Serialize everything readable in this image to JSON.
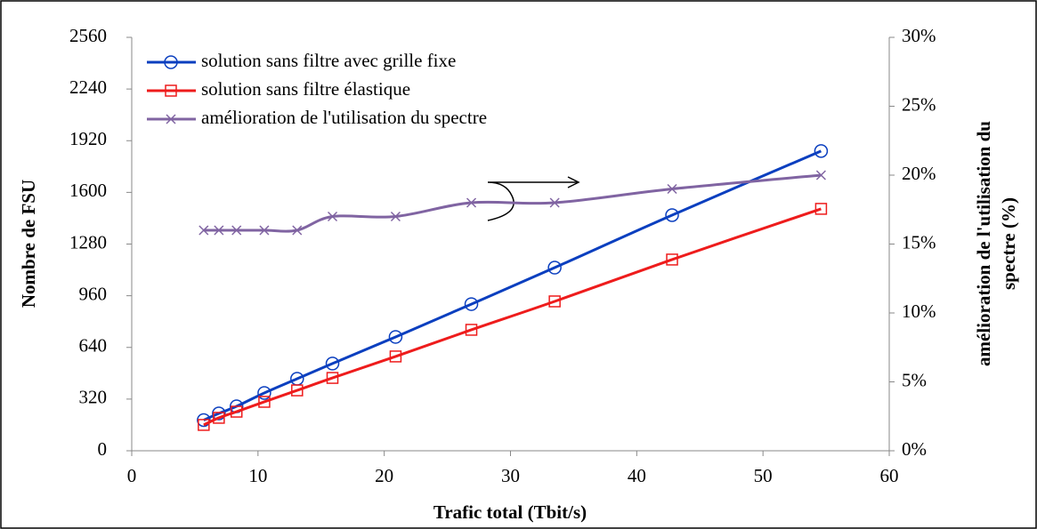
{
  "chart_data": {
    "type": "line",
    "xlabel": "Trafic total (Tbit/s)",
    "ylabel": "Nombre de FSU",
    "y2label": [
      "amélioration de l'utilisation du",
      "spectre (%)"
    ],
    "x": [
      5.7,
      6.9,
      8.3,
      10.5,
      13.1,
      15.9,
      20.9,
      26.9,
      33.5,
      42.8,
      54.6
    ],
    "series": [
      {
        "name": "solution sans filtre avec grille fixe",
        "color": "#0b3fbf",
        "marker": "circle",
        "values": [
          190,
          231,
          275,
          358,
          446,
          540,
          705,
          908,
          1134,
          1459,
          1856
        ]
      },
      {
        "name": "solution sans filtre élastique",
        "color": "#ee1c1c",
        "marker": "square",
        "values": [
          160,
          204,
          242,
          303,
          374,
          451,
          584,
          749,
          925,
          1184,
          1498
        ]
      },
      {
        "name": "amélioration de l'utilisation du spectre",
        "color": "#8064a2",
        "marker": "x",
        "axis": "y2",
        "values": [
          16,
          16,
          16,
          16,
          16,
          17,
          17,
          18,
          18,
          19,
          20
        ]
      }
    ],
    "xlim": [
      0,
      60
    ],
    "xticks": [
      0,
      10,
      20,
      30,
      40,
      50,
      60
    ],
    "ylim": [
      0,
      2560
    ],
    "yticks": [
      0,
      320,
      640,
      960,
      1280,
      1600,
      1920,
      2240,
      2560
    ],
    "y2lim": [
      0,
      30
    ],
    "y2ticks": [
      {
        "value": 0,
        "label": "0%"
      },
      {
        "value": 5,
        "label": "5%"
      },
      {
        "value": 10,
        "label": "10%"
      },
      {
        "value": 15,
        "label": "15%"
      },
      {
        "value": 20,
        "label": "20%"
      },
      {
        "value": 25,
        "label": "25%"
      },
      {
        "value": 30,
        "label": "30%"
      }
    ],
    "grid": false,
    "legend": "upper left"
  }
}
